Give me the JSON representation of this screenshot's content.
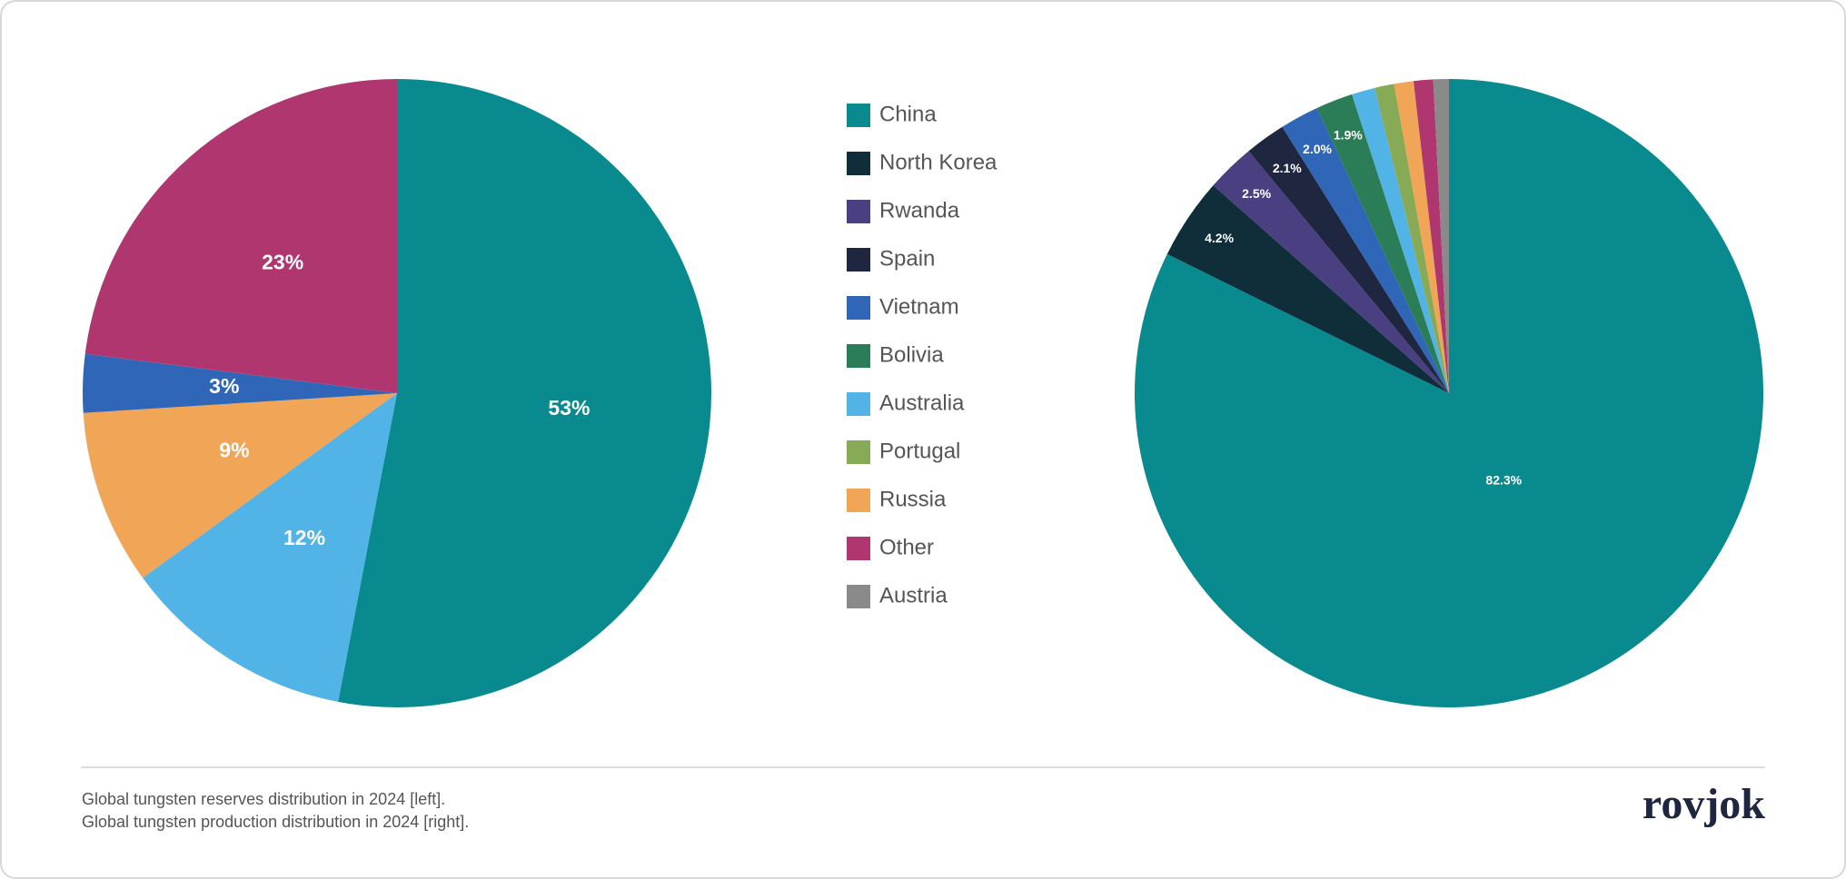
{
  "chart_data": [
    {
      "type": "pie",
      "title": "",
      "categories": [
        "China",
        "Australia",
        "Russia",
        "Vietnam",
        "Other"
      ],
      "values": [
        53,
        12,
        9,
        3,
        23
      ],
      "value_labels": [
        "53%",
        "12%",
        "9%",
        "3%",
        "23%"
      ],
      "colors": [
        "#088a8f",
        "#52b3e6",
        "#f0a557",
        "#2f66b8",
        "#b03670"
      ]
    },
    {
      "type": "pie",
      "title": "",
      "categories": [
        "China",
        "North Korea",
        "Rwanda",
        "Spain",
        "Vietnam",
        "Bolivia",
        "Australia",
        "Portugal",
        "Russia",
        "Other",
        "Austria"
      ],
      "values": [
        82.3,
        4.2,
        2.5,
        2.1,
        2.0,
        1.9,
        1.2,
        1.0,
        1.0,
        1.0,
        0.8
      ],
      "value_labels": [
        "82.3%",
        "4.2%",
        "2.5%",
        "2.1%",
        "2.0%",
        "1.9%",
        null,
        null,
        null,
        null,
        null
      ],
      "colors": [
        "#088a8f",
        "#0f2e3a",
        "#4a3f80",
        "#1e2640",
        "#2f66b8",
        "#2b7d57",
        "#52b3e6",
        "#86aa55",
        "#f0a557",
        "#b03670",
        "#8a8a8a"
      ],
      "legend": true
    }
  ],
  "footer": {
    "notes": [
      "Global tungsten reserves distribution in 2024 [left].",
      "Global tungsten production distribution in 2024 [right]."
    ],
    "brand": "rovjok"
  }
}
